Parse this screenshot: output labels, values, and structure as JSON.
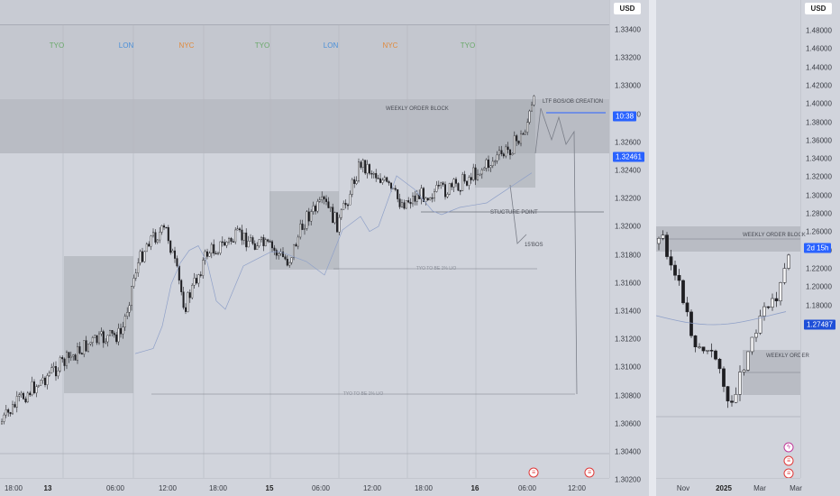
{
  "currency": "USD",
  "left_chart": {
    "y_ticks": [
      "1.33400",
      "1.33200",
      "1.33000",
      "1.32800",
      "1.32600",
      "1.32400",
      "1.32200",
      "1.32000",
      "1.31800",
      "1.31600",
      "1.31400",
      "1.31200",
      "1.31000",
      "1.30800",
      "1.30600",
      "1.30400",
      "1.30200"
    ],
    "price_tags": {
      "countdown": "10:38",
      "last_price": "1.32461"
    },
    "x_ticks": [
      {
        "label": "18:00",
        "bold": false
      },
      {
        "label": "13",
        "bold": true
      },
      {
        "label": "06:00",
        "bold": false
      },
      {
        "label": "12:00",
        "bold": false
      },
      {
        "label": "18:00",
        "bold": false
      },
      {
        "label": "15",
        "bold": true
      },
      {
        "label": "06:00",
        "bold": false
      },
      {
        "label": "12:00",
        "bold": false
      },
      {
        "label": "18:00",
        "bold": false
      },
      {
        "label": "16",
        "bold": true
      },
      {
        "label": "06:00",
        "bold": false
      },
      {
        "label": "12:00",
        "bold": false
      }
    ],
    "sessions": [
      {
        "label": "TYO",
        "color": "#6aa86a"
      },
      {
        "label": "LON",
        "color": "#4a8fd8"
      },
      {
        "label": "NYC",
        "color": "#e08a3c"
      },
      {
        "label": "TYO",
        "color": "#6aa86a"
      },
      {
        "label": "LON",
        "color": "#4a8fd8"
      },
      {
        "label": "NYC",
        "color": "#e08a3c"
      },
      {
        "label": "TYO",
        "color": "#6aa86a"
      }
    ],
    "annotations": {
      "weekly_ob": "WEEKLY ORDER BLOCK",
      "ltf_bos": "LTF BOS/OB CREATION",
      "structure_point": "STUCTURE POINT",
      "bos_15": "15'BOS",
      "tyo_note_1": "TYO TO BE 1% LIO",
      "tyo_note_2": "TYO TO BE 1% LIO"
    }
  },
  "right_chart": {
    "y_ticks": [
      "1.48000",
      "1.46000",
      "1.44000",
      "1.42000",
      "1.40000",
      "1.38000",
      "1.36000",
      "1.34000",
      "1.32000",
      "1.30000",
      "1.28000",
      "1.26000",
      "1.24000",
      "1.22000",
      "1.20000",
      "1.18000"
    ],
    "price_tags": {
      "countdown": "2d 15h",
      "last_price": "1.27487"
    },
    "x_ticks": [
      {
        "label": "Nov",
        "bold": false
      },
      {
        "label": "2025",
        "bold": true
      },
      {
        "label": "Mar",
        "bold": false
      },
      {
        "label": "Mar",
        "bold": false
      }
    ],
    "annotations": {
      "weekly_ob_top": "WEEKLY ORDER BLOCK",
      "weekly_ob_bottom": "WEEKLY ORDER"
    }
  },
  "colors": {
    "accent": "#2962ff",
    "background": "#d1d4dc",
    "candle": "#1e1e22",
    "zone": "#a8abb3"
  }
}
